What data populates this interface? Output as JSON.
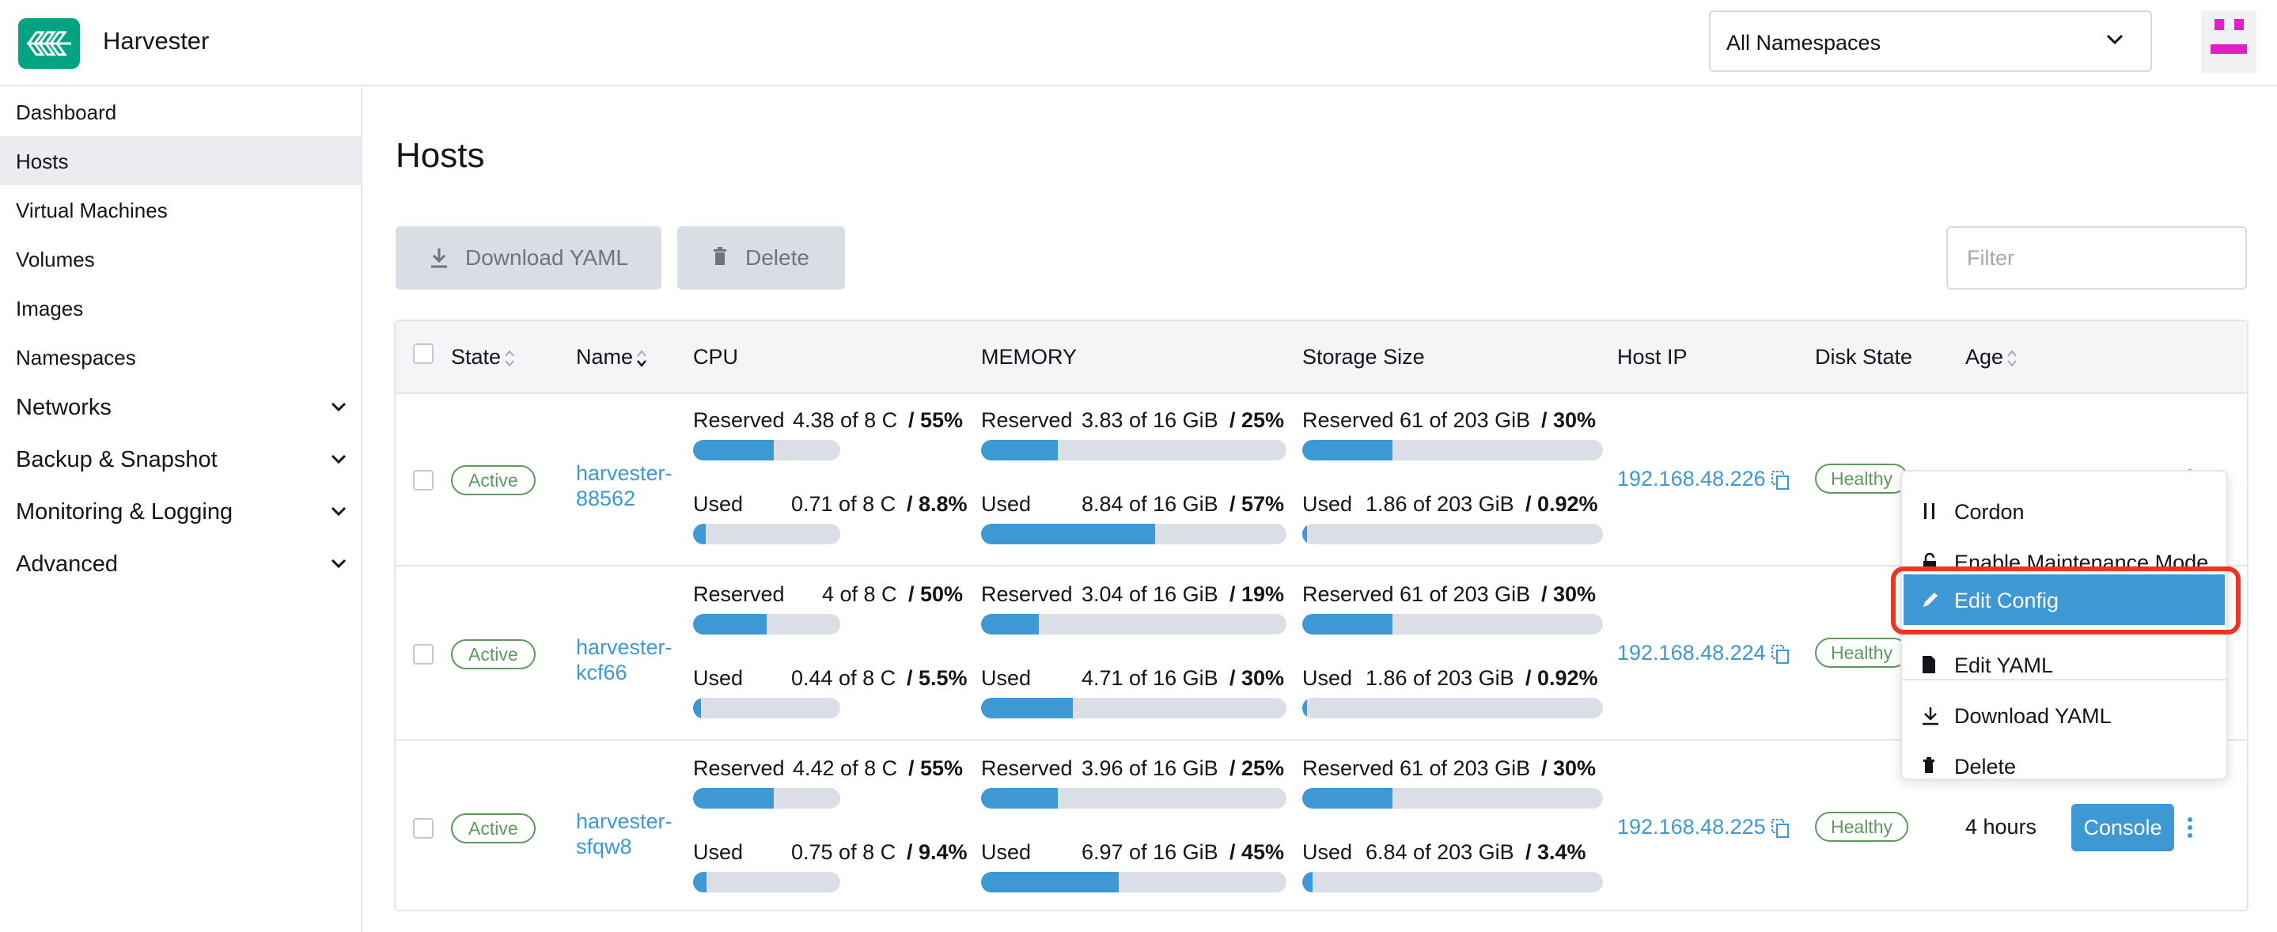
{
  "header": {
    "app_title": "Harvester",
    "namespace_selector": "All Namespaces"
  },
  "sidebar": {
    "items": [
      {
        "label": "Dashboard"
      },
      {
        "label": "Hosts",
        "active": true
      },
      {
        "label": "Virtual Machines"
      },
      {
        "label": "Volumes"
      },
      {
        "label": "Images"
      },
      {
        "label": "Namespaces"
      }
    ],
    "groups": [
      {
        "label": "Networks"
      },
      {
        "label": "Backup & Snapshot"
      },
      {
        "label": "Monitoring & Logging"
      },
      {
        "label": "Advanced"
      }
    ]
  },
  "main": {
    "title": "Hosts",
    "toolbar": {
      "download_yaml": "Download YAML",
      "delete": "Delete",
      "filter_placeholder": "Filter"
    },
    "columns": {
      "state": "State",
      "name": "Name",
      "cpu": "CPU",
      "memory": "MEMORY",
      "storage": "Storage Size",
      "host_ip": "Host IP",
      "disk_state": "Disk State",
      "age": "Age"
    },
    "rows": [
      {
        "state": "Active",
        "name": "harvester-88562",
        "cpu_reserved": {
          "label": "Reserved",
          "value": "4.38 of 8 C",
          "pct": "/ 55%",
          "fill": 0.55
        },
        "cpu_used": {
          "label": "Used",
          "value": "0.71 of 8 C",
          "pct": "/ 8.8%",
          "fill": 0.088
        },
        "mem_reserved": {
          "label": "Reserved",
          "value": "3.83 of 16 GiB",
          "pct": "/ 25%",
          "fill": 0.25
        },
        "mem_used": {
          "label": "Used",
          "value": "8.84 of 16 GiB",
          "pct": "/ 57%",
          "fill": 0.57
        },
        "sto_reserved": {
          "label": "Reserved",
          "value": "61 of 203 GiB",
          "pct": "/ 30%",
          "fill": 0.3
        },
        "sto_used": {
          "label": "Used",
          "value": "1.86 of 203 GiB",
          "pct": "/ 0.92%",
          "fill": 0.0092
        },
        "host_ip": "192.168.48.226",
        "disk_state": "Healthy",
        "age": "",
        "console": ""
      },
      {
        "state": "Active",
        "name": "harvester-kcf66",
        "cpu_reserved": {
          "label": "Reserved",
          "value": "4 of 8 C",
          "pct": "/ 50%",
          "fill": 0.5
        },
        "cpu_used": {
          "label": "Used",
          "value": "0.44 of 8 C",
          "pct": "/ 5.5%",
          "fill": 0.055
        },
        "mem_reserved": {
          "label": "Reserved",
          "value": "3.04 of 16 GiB",
          "pct": "/ 19%",
          "fill": 0.19
        },
        "mem_used": {
          "label": "Used",
          "value": "4.71 of 16 GiB",
          "pct": "/ 30%",
          "fill": 0.3
        },
        "sto_reserved": {
          "label": "Reserved",
          "value": "61 of 203 GiB",
          "pct": "/ 30%",
          "fill": 0.3
        },
        "sto_used": {
          "label": "Used",
          "value": "1.86 of 203 GiB",
          "pct": "/ 0.92%",
          "fill": 0.0092
        },
        "host_ip": "192.168.48.224",
        "disk_state": "Healthy",
        "age": "",
        "console": ""
      },
      {
        "state": "Active",
        "name": "harvester-sfqw8",
        "cpu_reserved": {
          "label": "Reserved",
          "value": "4.42 of 8 C",
          "pct": "/ 55%",
          "fill": 0.55
        },
        "cpu_used": {
          "label": "Used",
          "value": "0.75 of 8 C",
          "pct": "/ 9.4%",
          "fill": 0.094
        },
        "mem_reserved": {
          "label": "Reserved",
          "value": "3.96 of 16 GiB",
          "pct": "/ 25%",
          "fill": 0.25
        },
        "mem_used": {
          "label": "Used",
          "value": "6.97 of 16 GiB",
          "pct": "/ 45%",
          "fill": 0.45
        },
        "sto_reserved": {
          "label": "Reserved",
          "value": "61 of 203 GiB",
          "pct": "/ 30%",
          "fill": 0.3
        },
        "sto_used": {
          "label": "Used",
          "value": "6.84 of 203 GiB",
          "pct": "/ 3.4%",
          "fill": 0.034
        },
        "host_ip": "192.168.48.225",
        "disk_state": "Healthy",
        "age": "4 hours",
        "console": "Console"
      }
    ]
  },
  "context_menu": {
    "items": [
      {
        "label": "Cordon",
        "icon": "pause-icon"
      },
      {
        "label": "Enable Maintenance Mode",
        "icon": "unlock-icon"
      },
      {
        "label": "Edit Config",
        "icon": "pencil-icon",
        "selected": true
      },
      {
        "label": "Edit YAML",
        "icon": "file-icon"
      },
      {
        "label": "Download YAML",
        "icon": "download-icon"
      },
      {
        "label": "Delete",
        "icon": "trash-icon"
      }
    ]
  },
  "colors": {
    "accent": "#3d98d3",
    "success": "#5d995d",
    "highlight": "#ec3622",
    "logo": "#00a483"
  }
}
